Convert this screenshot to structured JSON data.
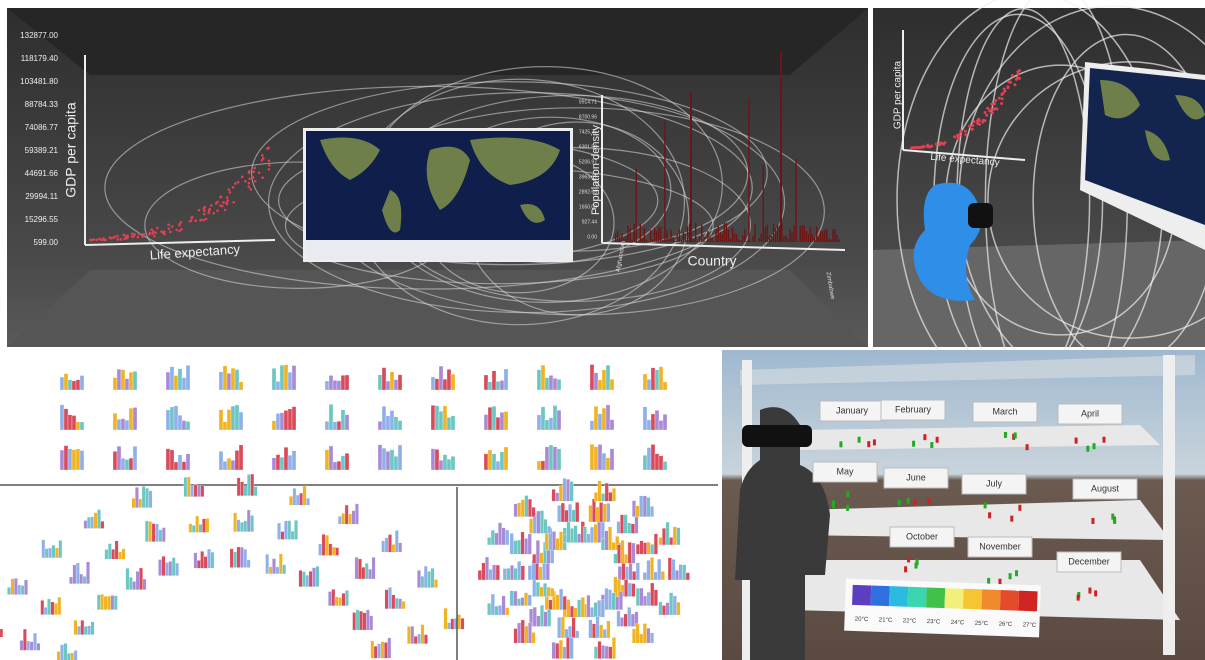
{
  "panel_a": {
    "y_axis_label": "GDP per capita",
    "y_ticks": [
      "132877.00",
      "118179.40",
      "103481.80",
      "88784.33",
      "74086.77",
      "59389.21",
      "44691.66",
      "29994.11",
      "15296.55",
      "599.00"
    ],
    "x_axis_label": "Life expectancy",
    "density_axis_label": "Population density",
    "density_ticks": [
      "9914.71",
      "8700.96",
      "7425.75",
      "6301.50",
      "5206.97",
      "3963.61",
      "2892.66",
      "1650.08",
      "927.44",
      "0.00"
    ],
    "country_axis_label": "Country",
    "first_country": "Afghanistan",
    "last_country": "Zimbabwe"
  },
  "panel_b": {
    "y_axis_label": "GDP per capita",
    "x_axis_label": "Life expectancy"
  },
  "panel_e": {
    "months": [
      "January",
      "February",
      "March",
      "April",
      "May",
      "June",
      "July",
      "August",
      "October",
      "November",
      "December"
    ],
    "legend": [
      "20°C",
      "21°C",
      "22°C",
      "23°C",
      "24°C",
      "25°C",
      "26°C",
      "27°C"
    ]
  }
}
